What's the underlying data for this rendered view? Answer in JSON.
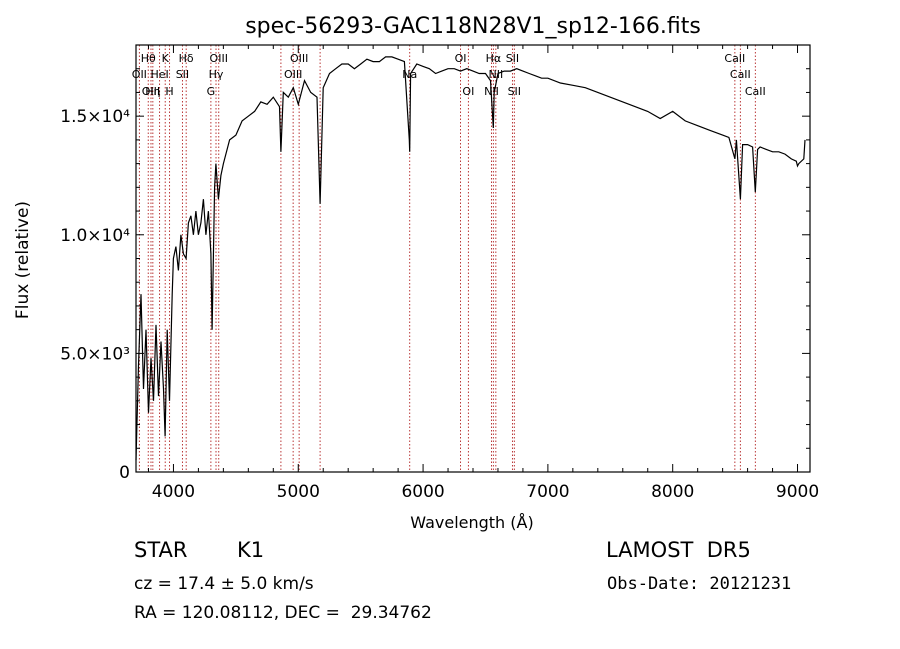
{
  "chart_data": {
    "type": "line",
    "title": "spec-56293-GAC118N28V1_sp12-166.fits",
    "xlabel": "Wavelength (Å)",
    "ylabel": "Flux (relative)",
    "xlim": [
      3700,
      9100
    ],
    "ylim": [
      0,
      18000
    ],
    "x_ticks": [
      {
        "value": 4000,
        "label": "4000"
      },
      {
        "value": 5000,
        "label": "5000"
      },
      {
        "value": 6000,
        "label": "6000"
      },
      {
        "value": 7000,
        "label": "7000"
      },
      {
        "value": 8000,
        "label": "8000"
      },
      {
        "value": 9000,
        "label": "9000"
      }
    ],
    "y_ticks": [
      {
        "value": 0,
        "label": "0"
      },
      {
        "value": 5000,
        "label": "5.0×10³"
      },
      {
        "value": 10000,
        "label": "1.0×10⁴"
      },
      {
        "value": 15000,
        "label": "1.5×10⁴"
      }
    ],
    "grid": false,
    "series": [
      {
        "x": [
          3700,
          3720,
          3740,
          3760,
          3780,
          3800,
          3820,
          3840,
          3860,
          3880,
          3900,
          3920,
          3933,
          3950,
          3968,
          3990,
          4000,
          4020,
          4040,
          4060,
          4080,
          4101,
          4120,
          4140,
          4160,
          4180,
          4200,
          4220,
          4240,
          4260,
          4280,
          4300,
          4310,
          4330,
          4340,
          4360,
          4380,
          4400,
          4450,
          4500,
          4550,
          4600,
          4650,
          4700,
          4750,
          4800,
          4850,
          4861,
          4880,
          4920,
          4960,
          5000,
          5050,
          5100,
          5150,
          5175,
          5200,
          5250,
          5300,
          5350,
          5400,
          5450,
          5500,
          5550,
          5600,
          5650,
          5700,
          5750,
          5800,
          5850,
          5890,
          5893,
          5900,
          5950,
          6000,
          6050,
          6100,
          6150,
          6200,
          6250,
          6300,
          6350,
          6400,
          6450,
          6500,
          6540,
          6563,
          6570,
          6600,
          6650,
          6700,
          6750,
          6800,
          6850,
          6900,
          6950,
          7000,
          7100,
          7200,
          7300,
          7400,
          7500,
          7600,
          7700,
          7800,
          7900,
          8000,
          8100,
          8200,
          8300,
          8400,
          8450,
          8498,
          8510,
          8542,
          8560,
          8600,
          8640,
          8662,
          8680,
          8700,
          8750,
          8800,
          8850,
          8900,
          8950,
          8990,
          9000,
          9010,
          9050,
          9060
        ],
        "y": [
          500,
          4500,
          7500,
          3500,
          6000,
          2500,
          4800,
          3000,
          6200,
          3200,
          5500,
          3500,
          1500,
          6000,
          3000,
          7500,
          9000,
          9500,
          8500,
          10000,
          9200,
          9000,
          10500,
          10800,
          10000,
          11000,
          10000,
          10500,
          11500,
          10000,
          11000,
          9200,
          6000,
          12000,
          13000,
          11500,
          12500,
          13000,
          14000,
          14200,
          14800,
          15000,
          15200,
          15600,
          15500,
          15800,
          15400,
          13500,
          16000,
          15800,
          16200,
          15500,
          16500,
          16000,
          15800,
          11300,
          16200,
          16800,
          17000,
          17200,
          17200,
          17000,
          17200,
          17400,
          17300,
          17300,
          17500,
          17500,
          17400,
          17300,
          14000,
          13500,
          16800,
          17200,
          17100,
          17000,
          16800,
          16900,
          17000,
          17000,
          16900,
          17000,
          16900,
          16800,
          16800,
          16500,
          14500,
          16000,
          16800,
          16900,
          16900,
          17000,
          16900,
          16800,
          16700,
          16600,
          16600,
          16400,
          16300,
          16200,
          16000,
          15800,
          15600,
          15400,
          15200,
          14900,
          15200,
          14800,
          14600,
          14400,
          14200,
          14100,
          13200,
          14000,
          11500,
          13800,
          13800,
          13700,
          11800,
          13600,
          13700,
          13600,
          13500,
          13500,
          13400,
          13200,
          13100,
          12900,
          13000,
          13200,
          14000
        ]
      }
    ],
    "lines": [
      {
        "wave": 3727,
        "label": "OII",
        "row": 2
      },
      {
        "wave": 3798,
        "label": "Hθ",
        "row": 1
      },
      {
        "wave": 3820,
        "label": "OIII",
        "row": 3
      },
      {
        "wave": 3835,
        "label": "Hη",
        "row": 3
      },
      {
        "wave": 3889,
        "label": "HeI",
        "row": 2
      },
      {
        "wave": 3934,
        "label": "K",
        "row": 1
      },
      {
        "wave": 3969,
        "label": "H",
        "row": 3
      },
      {
        "wave": 4072,
        "label": "SII",
        "row": 2
      },
      {
        "wave": 4102,
        "label": "Hδ",
        "row": 1
      },
      {
        "wave": 4300,
        "label": "G",
        "row": 3
      },
      {
        "wave": 4341,
        "label": "Hγ",
        "row": 2
      },
      {
        "wave": 4363,
        "label": "OIII",
        "row": 1
      },
      {
        "wave": 4861,
        "label": "",
        "row": 0
      },
      {
        "wave": 4959,
        "label": "OIII",
        "row": 2
      },
      {
        "wave": 5007,
        "label": "OIII",
        "row": 1
      },
      {
        "wave": 5175,
        "label": "",
        "row": 0
      },
      {
        "wave": 5893,
        "label": "Na",
        "row": 2
      },
      {
        "wave": 6300,
        "label": "OI",
        "row": 1
      },
      {
        "wave": 6363,
        "label": "OI",
        "row": 3
      },
      {
        "wave": 6548,
        "label": "NII",
        "row": 3
      },
      {
        "wave": 6563,
        "label": "Hα",
        "row": 1
      },
      {
        "wave": 6583,
        "label": "NII",
        "row": 2
      },
      {
        "wave": 6716,
        "label": "SII",
        "row": 1
      },
      {
        "wave": 6731,
        "label": "SII",
        "row": 3
      },
      {
        "wave": 8498,
        "label": "CaII",
        "row": 1
      },
      {
        "wave": 8542,
        "label": "CaII",
        "row": 2
      },
      {
        "wave": 8662,
        "label": "CaII",
        "row": 3
      }
    ]
  },
  "info": {
    "object_class": "STAR",
    "subclass": "K1",
    "survey": "LAMOST  DR5",
    "cz": "cz = 17.4 ± 5.0 km/s",
    "obs_date": "Obs-Date: 20121231",
    "radec": "RA = 120.08112, DEC =  29.34762"
  },
  "colors": {
    "spectrum": "#000000",
    "line_markers": "#b22222",
    "axis": "#000000"
  }
}
